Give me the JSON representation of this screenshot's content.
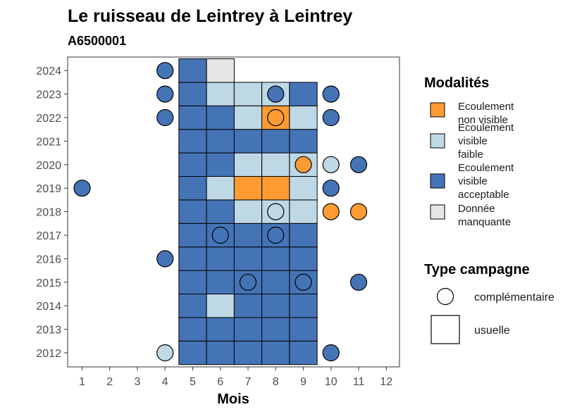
{
  "chart_data": {
    "type": "heatmap",
    "title": "Le ruisseau de Leintrey à Leintrey",
    "subtitle": "A6500001",
    "xlabel": "Mois",
    "ylabel": "",
    "x_categories": [
      "1",
      "2",
      "3",
      "4",
      "5",
      "6",
      "7",
      "8",
      "9",
      "10",
      "11",
      "12"
    ],
    "y_categories": [
      "2012",
      "2013",
      "2014",
      "2015",
      "2016",
      "2017",
      "2018",
      "2019",
      "2020",
      "2021",
      "2022",
      "2023",
      "2024"
    ],
    "legend": {
      "modalites_title": "Modalités",
      "modalites": [
        {
          "key": "nv",
          "label": [
            "Ecoulement",
            "non visible"
          ],
          "color": "#fe9c33"
        },
        {
          "key": "vf",
          "label": [
            "Ecoulement",
            "visible",
            "faible"
          ],
          "color": "#bed8e6"
        },
        {
          "key": "va",
          "label": [
            "Ecoulement",
            "visible",
            "acceptable"
          ],
          "color": "#4574b6"
        },
        {
          "key": "dm",
          "label": [
            "Donnée",
            "manquante"
          ],
          "color": "#e6e6e6"
        }
      ],
      "campagne_title": "Type campagne",
      "campagnes": [
        {
          "key": "complementaire",
          "label": "complémentaire",
          "shape": "circle"
        },
        {
          "key": "usuelle",
          "label": "usuelle",
          "shape": "square"
        }
      ]
    },
    "usuelle": [
      {
        "year": 2012,
        "month": 5,
        "m": "va"
      },
      {
        "year": 2012,
        "month": 6,
        "m": "va"
      },
      {
        "year": 2012,
        "month": 7,
        "m": "va"
      },
      {
        "year": 2012,
        "month": 8,
        "m": "va"
      },
      {
        "year": 2012,
        "month": 9,
        "m": "va"
      },
      {
        "year": 2013,
        "month": 5,
        "m": "va"
      },
      {
        "year": 2013,
        "month": 6,
        "m": "va"
      },
      {
        "year": 2013,
        "month": 7,
        "m": "va"
      },
      {
        "year": 2013,
        "month": 8,
        "m": "va"
      },
      {
        "year": 2013,
        "month": 9,
        "m": "va"
      },
      {
        "year": 2014,
        "month": 5,
        "m": "va"
      },
      {
        "year": 2014,
        "month": 6,
        "m": "vf"
      },
      {
        "year": 2014,
        "month": 7,
        "m": "va"
      },
      {
        "year": 2014,
        "month": 8,
        "m": "va"
      },
      {
        "year": 2014,
        "month": 9,
        "m": "va"
      },
      {
        "year": 2015,
        "month": 5,
        "m": "va"
      },
      {
        "year": 2015,
        "month": 6,
        "m": "va"
      },
      {
        "year": 2015,
        "month": 7,
        "m": "va"
      },
      {
        "year": 2015,
        "month": 8,
        "m": "va"
      },
      {
        "year": 2015,
        "month": 9,
        "m": "va"
      },
      {
        "year": 2016,
        "month": 5,
        "m": "va"
      },
      {
        "year": 2016,
        "month": 6,
        "m": "va"
      },
      {
        "year": 2016,
        "month": 7,
        "m": "va"
      },
      {
        "year": 2016,
        "month": 8,
        "m": "va"
      },
      {
        "year": 2016,
        "month": 9,
        "m": "va"
      },
      {
        "year": 2017,
        "month": 5,
        "m": "va"
      },
      {
        "year": 2017,
        "month": 6,
        "m": "va"
      },
      {
        "year": 2017,
        "month": 7,
        "m": "va"
      },
      {
        "year": 2017,
        "month": 8,
        "m": "va"
      },
      {
        "year": 2017,
        "month": 9,
        "m": "va"
      },
      {
        "year": 2018,
        "month": 5,
        "m": "va"
      },
      {
        "year": 2018,
        "month": 6,
        "m": "va"
      },
      {
        "year": 2018,
        "month": 7,
        "m": "vf"
      },
      {
        "year": 2018,
        "month": 8,
        "m": "vf"
      },
      {
        "year": 2018,
        "month": 9,
        "m": "vf"
      },
      {
        "year": 2019,
        "month": 5,
        "m": "va"
      },
      {
        "year": 2019,
        "month": 6,
        "m": "vf"
      },
      {
        "year": 2019,
        "month": 7,
        "m": "nv"
      },
      {
        "year": 2019,
        "month": 8,
        "m": "nv"
      },
      {
        "year": 2019,
        "month": 9,
        "m": "vf"
      },
      {
        "year": 2020,
        "month": 5,
        "m": "va"
      },
      {
        "year": 2020,
        "month": 6,
        "m": "va"
      },
      {
        "year": 2020,
        "month": 7,
        "m": "vf"
      },
      {
        "year": 2020,
        "month": 8,
        "m": "vf"
      },
      {
        "year": 2020,
        "month": 9,
        "m": "vf"
      },
      {
        "year": 2021,
        "month": 5,
        "m": "va"
      },
      {
        "year": 2021,
        "month": 6,
        "m": "va"
      },
      {
        "year": 2021,
        "month": 7,
        "m": "va"
      },
      {
        "year": 2021,
        "month": 8,
        "m": "va"
      },
      {
        "year": 2021,
        "month": 9,
        "m": "va"
      },
      {
        "year": 2022,
        "month": 5,
        "m": "va"
      },
      {
        "year": 2022,
        "month": 6,
        "m": "va"
      },
      {
        "year": 2022,
        "month": 7,
        "m": "vf"
      },
      {
        "year": 2022,
        "month": 8,
        "m": "nv"
      },
      {
        "year": 2022,
        "month": 9,
        "m": "vf"
      },
      {
        "year": 2023,
        "month": 5,
        "m": "va"
      },
      {
        "year": 2023,
        "month": 6,
        "m": "vf"
      },
      {
        "year": 2023,
        "month": 7,
        "m": "vf"
      },
      {
        "year": 2023,
        "month": 8,
        "m": "vf"
      },
      {
        "year": 2023,
        "month": 9,
        "m": "va"
      },
      {
        "year": 2024,
        "month": 5,
        "m": "va"
      },
      {
        "year": 2024,
        "month": 6,
        "m": "dm"
      }
    ],
    "complementaire": [
      {
        "year": 2024,
        "month": 4,
        "m": "va"
      },
      {
        "year": 2023,
        "month": 4,
        "m": "va"
      },
      {
        "year": 2023,
        "month": 8,
        "m": "va"
      },
      {
        "year": 2023,
        "month": 10,
        "m": "va"
      },
      {
        "year": 2022,
        "month": 4,
        "m": "va"
      },
      {
        "year": 2022,
        "month": 8,
        "m": "nv"
      },
      {
        "year": 2022,
        "month": 10,
        "m": "va"
      },
      {
        "year": 2020,
        "month": 9,
        "m": "nv"
      },
      {
        "year": 2020,
        "month": 10,
        "m": "vf"
      },
      {
        "year": 2020,
        "month": 11,
        "m": "va"
      },
      {
        "year": 2019,
        "month": 1,
        "m": "va"
      },
      {
        "year": 2019,
        "month": 10,
        "m": "va"
      },
      {
        "year": 2018,
        "month": 8,
        "m": "vf"
      },
      {
        "year": 2018,
        "month": 10,
        "m": "nv"
      },
      {
        "year": 2018,
        "month": 11,
        "m": "nv"
      },
      {
        "year": 2017,
        "month": 6,
        "m": "va"
      },
      {
        "year": 2017,
        "month": 8,
        "m": "va"
      },
      {
        "year": 2016,
        "month": 4,
        "m": "va"
      },
      {
        "year": 2015,
        "month": 7,
        "m": "va"
      },
      {
        "year": 2015,
        "month": 9,
        "m": "va"
      },
      {
        "year": 2015,
        "month": 11,
        "m": "va"
      },
      {
        "year": 2012,
        "month": 4,
        "m": "vf"
      },
      {
        "year": 2012,
        "month": 10,
        "m": "va"
      }
    ]
  }
}
